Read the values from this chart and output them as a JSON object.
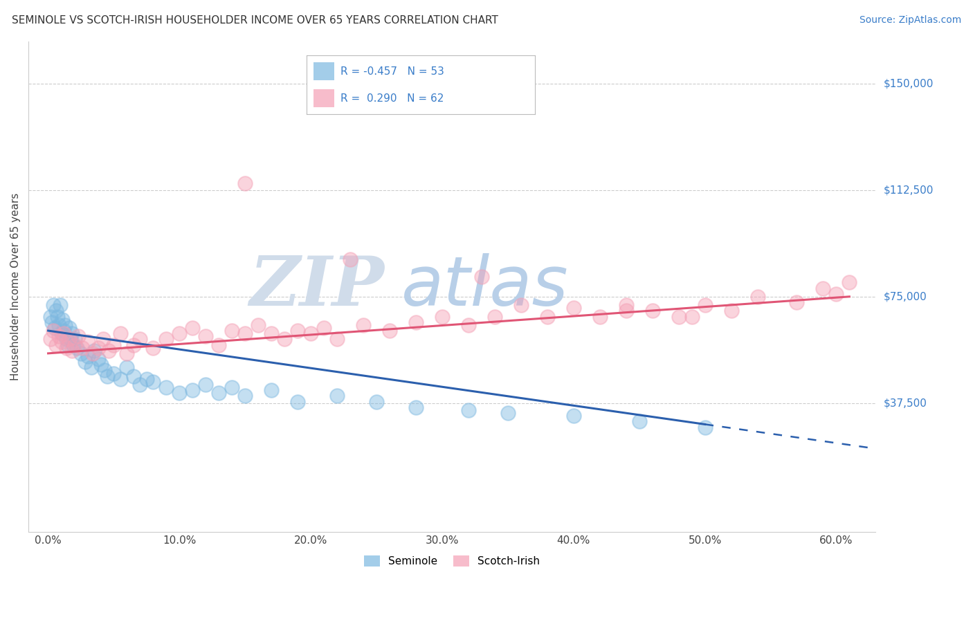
{
  "title": "SEMINOLE VS SCOTCH-IRISH HOUSEHOLDER INCOME OVER 65 YEARS CORRELATION CHART",
  "source": "Source: ZipAtlas.com",
  "ylabel": "Householder Income Over 65 years",
  "x_ticks": [
    0.0,
    10.0,
    20.0,
    30.0,
    40.0,
    50.0,
    60.0
  ],
  "x_tick_labels": [
    "0.0%",
    "10.0%",
    "20.0%",
    "30.0%",
    "40.0%",
    "50.0%",
    "60.0%"
  ],
  "y_ticks": [
    0,
    37500,
    75000,
    112500,
    150000
  ],
  "y_tick_labels": [
    "",
    "$37,500",
    "$75,000",
    "$112,500",
    "$150,000"
  ],
  "xlim": [
    -1.5,
    63
  ],
  "ylim": [
    -8000,
    165000
  ],
  "legend_label1": "Seminole",
  "legend_label2": "Scotch-Irish",
  "color_seminole": "#7db8e0",
  "color_scotch": "#f4a0b5",
  "color_blue_line": "#2b5fad",
  "color_pink_line": "#e05575",
  "color_text_blue": "#3a7dc9",
  "watermark_color_zip": "#c5d5e5",
  "watermark_color_atlas": "#b8cfe8",
  "background_color": "#ffffff",
  "grid_color": "#cccccc",
  "seminole_x": [
    0.2,
    0.3,
    0.4,
    0.5,
    0.6,
    0.7,
    0.8,
    0.9,
    1.0,
    1.1,
    1.2,
    1.3,
    1.4,
    1.5,
    1.6,
    1.7,
    1.8,
    1.9,
    2.0,
    2.2,
    2.5,
    2.8,
    3.0,
    3.3,
    3.5,
    3.8,
    4.0,
    4.3,
    4.5,
    5.0,
    5.5,
    6.0,
    6.5,
    7.0,
    7.5,
    8.0,
    9.0,
    10.0,
    11.0,
    12.0,
    13.0,
    14.0,
    15.0,
    17.0,
    19.0,
    22.0,
    25.0,
    28.0,
    32.0,
    35.0,
    40.0,
    45.0,
    50.0
  ],
  "seminole_y": [
    68000,
    66000,
    72000,
    64000,
    70000,
    68000,
    65000,
    72000,
    62000,
    67000,
    63000,
    65000,
    60000,
    58000,
    64000,
    60000,
    62000,
    58000,
    60000,
    57000,
    55000,
    52000,
    54000,
    50000,
    56000,
    53000,
    51000,
    49000,
    47000,
    48000,
    46000,
    50000,
    47000,
    44000,
    46000,
    45000,
    43000,
    41000,
    42000,
    44000,
    41000,
    43000,
    40000,
    42000,
    38000,
    40000,
    38000,
    36000,
    35000,
    34000,
    33000,
    31000,
    29000
  ],
  "scotch_x": [
    0.2,
    0.4,
    0.6,
    0.8,
    1.0,
    1.2,
    1.4,
    1.6,
    1.8,
    2.0,
    2.3,
    2.6,
    3.0,
    3.4,
    3.8,
    4.2,
    4.6,
    5.0,
    5.5,
    6.0,
    6.5,
    7.0,
    8.0,
    9.0,
    10.0,
    11.0,
    12.0,
    13.0,
    14.0,
    15.0,
    16.0,
    17.0,
    18.0,
    19.0,
    20.0,
    21.0,
    22.0,
    24.0,
    26.0,
    28.0,
    30.0,
    32.0,
    34.0,
    36.0,
    38.0,
    40.0,
    42.0,
    44.0,
    46.0,
    48.0,
    50.0,
    52.0,
    54.0,
    57.0,
    59.0,
    60.0,
    61.0,
    23.0,
    15.0,
    33.0,
    44.0,
    49.0
  ],
  "scotch_y": [
    60000,
    63000,
    58000,
    61000,
    59000,
    62000,
    57000,
    60000,
    56000,
    58000,
    61000,
    57000,
    59000,
    55000,
    57000,
    60000,
    56000,
    58000,
    62000,
    55000,
    58000,
    60000,
    57000,
    60000,
    62000,
    64000,
    61000,
    58000,
    63000,
    62000,
    65000,
    62000,
    60000,
    63000,
    62000,
    64000,
    60000,
    65000,
    63000,
    66000,
    68000,
    65000,
    68000,
    72000,
    68000,
    71000,
    68000,
    72000,
    70000,
    68000,
    72000,
    70000,
    75000,
    73000,
    78000,
    76000,
    80000,
    88000,
    115000,
    82000,
    70000,
    68000
  ],
  "blue_line_x0": 0,
  "blue_line_y0": 63000,
  "blue_line_x1": 50,
  "blue_line_y1": 30000,
  "blue_dash_x0": 50,
  "blue_dash_x1": 63,
  "pink_line_x0": 0,
  "pink_line_y0": 55000,
  "pink_line_x1": 61,
  "pink_line_y1": 75000
}
